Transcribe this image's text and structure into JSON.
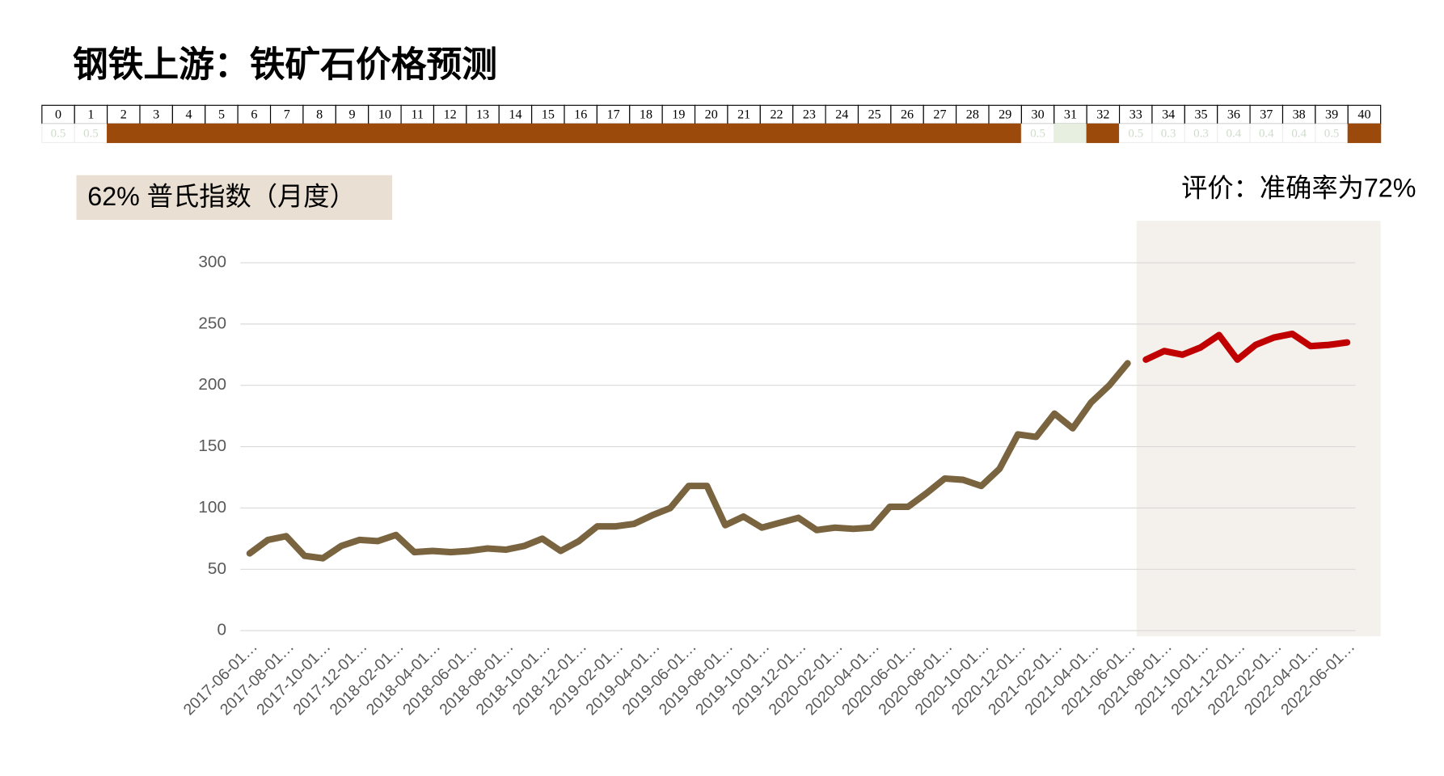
{
  "title": "钢铁上游：铁矿石价格预测",
  "strip": {
    "indices": [
      0,
      1,
      2,
      3,
      4,
      5,
      6,
      7,
      8,
      9,
      10,
      11,
      12,
      13,
      14,
      15,
      16,
      17,
      18,
      19,
      20,
      21,
      22,
      23,
      24,
      25,
      26,
      27,
      28,
      29,
      30,
      31,
      32,
      33,
      34,
      35,
      36,
      37,
      38,
      39,
      40
    ],
    "labels": [
      0.5,
      0.5,
      null,
      null,
      null,
      null,
      null,
      null,
      null,
      null,
      null,
      null,
      null,
      null,
      null,
      null,
      null,
      null,
      null,
      null,
      null,
      null,
      null,
      null,
      null,
      null,
      null,
      null,
      null,
      null,
      0.5,
      null,
      null,
      0.5,
      0.3,
      0.3,
      0.4,
      0.4,
      0.4,
      0.5,
      null
    ],
    "colors": [
      "#ffffff",
      "#ffffff",
      "#9c4a0c",
      "#9c4a0c",
      "#9c4a0c",
      "#9c4a0c",
      "#9c4a0c",
      "#9c4a0c",
      "#9c4a0c",
      "#9c4a0c",
      "#9c4a0c",
      "#9c4a0c",
      "#9c4a0c",
      "#9c4a0c",
      "#9c4a0c",
      "#9c4a0c",
      "#9c4a0c",
      "#9c4a0c",
      "#9c4a0c",
      "#9c4a0c",
      "#9c4a0c",
      "#9c4a0c",
      "#9c4a0c",
      "#9c4a0c",
      "#9c4a0c",
      "#9c4a0c",
      "#9c4a0c",
      "#9c4a0c",
      "#9c4a0c",
      "#9c4a0c",
      "#ffffff",
      "#e6efe0",
      "#9c4a0c",
      "#ffffff",
      "#ffffff",
      "#ffffff",
      "#ffffff",
      "#ffffff",
      "#ffffff",
      "#ffffff",
      "#9c4a0c"
    ]
  },
  "label_box": "62% 普氏指数（月度）",
  "evaluation": "评价：准确率为72%",
  "chart_data": {
    "type": "line",
    "categories": [
      "2017-06-01…",
      null,
      "2017-08-01…",
      null,
      "2017-10-01…",
      null,
      "2017-12-01…",
      null,
      "2018-02-01…",
      null,
      "2018-04-01…",
      null,
      "2018-06-01…",
      null,
      "2018-08-01…",
      null,
      "2018-10-01…",
      null,
      "2018-12-01…",
      null,
      "2019-02-01…",
      null,
      "2019-04-01…",
      null,
      "2019-06-01…",
      null,
      "2019-08-01…",
      null,
      "2019-10-01…",
      null,
      "2019-12-01…",
      null,
      "2020-02-01…",
      null,
      "2020-04-01…",
      null,
      "2020-06-01…",
      null,
      "2020-08-01…",
      null,
      "2020-10-01…",
      null,
      "2020-12-01…",
      null,
      "2021-02-01…",
      null,
      "2021-04-01…",
      null,
      "2021-06-01…",
      null,
      "2021-08-01…",
      null,
      "2021-10-01…",
      null,
      "2021-12-01…",
      null,
      "2022-02-01…",
      null,
      "2022-04-01…",
      null,
      "2022-06-01…"
    ],
    "series": [
      {
        "color": "#7a6440",
        "values": [
          63,
          74,
          77,
          61,
          59,
          69,
          74,
          73,
          78,
          64,
          65,
          64,
          65,
          67,
          66,
          69,
          75,
          65,
          73,
          85,
          85,
          87,
          94,
          100,
          118,
          118,
          86,
          93,
          84,
          88,
          92,
          82,
          84,
          83,
          84,
          101,
          101,
          112,
          124,
          123,
          118,
          132,
          160,
          158,
          177,
          165,
          186,
          200,
          218,
          null,
          null,
          null,
          null,
          null,
          null,
          null,
          null,
          null,
          null,
          null,
          null
        ]
      },
      {
        "color": "#c00000",
        "values": [
          null,
          null,
          null,
          null,
          null,
          null,
          null,
          null,
          null,
          null,
          null,
          null,
          null,
          null,
          null,
          null,
          null,
          null,
          null,
          null,
          null,
          null,
          null,
          null,
          null,
          null,
          null,
          null,
          null,
          null,
          null,
          null,
          null,
          null,
          null,
          null,
          null,
          null,
          null,
          null,
          null,
          null,
          null,
          null,
          null,
          null,
          null,
          null,
          null,
          221,
          228,
          225,
          231,
          241,
          221,
          233,
          239,
          242,
          232,
          233,
          235
        ]
      }
    ],
    "ylim": [
      0,
      300
    ],
    "yticks": [
      0,
      50,
      100,
      150,
      200,
      250,
      300
    ],
    "grid": true
  }
}
